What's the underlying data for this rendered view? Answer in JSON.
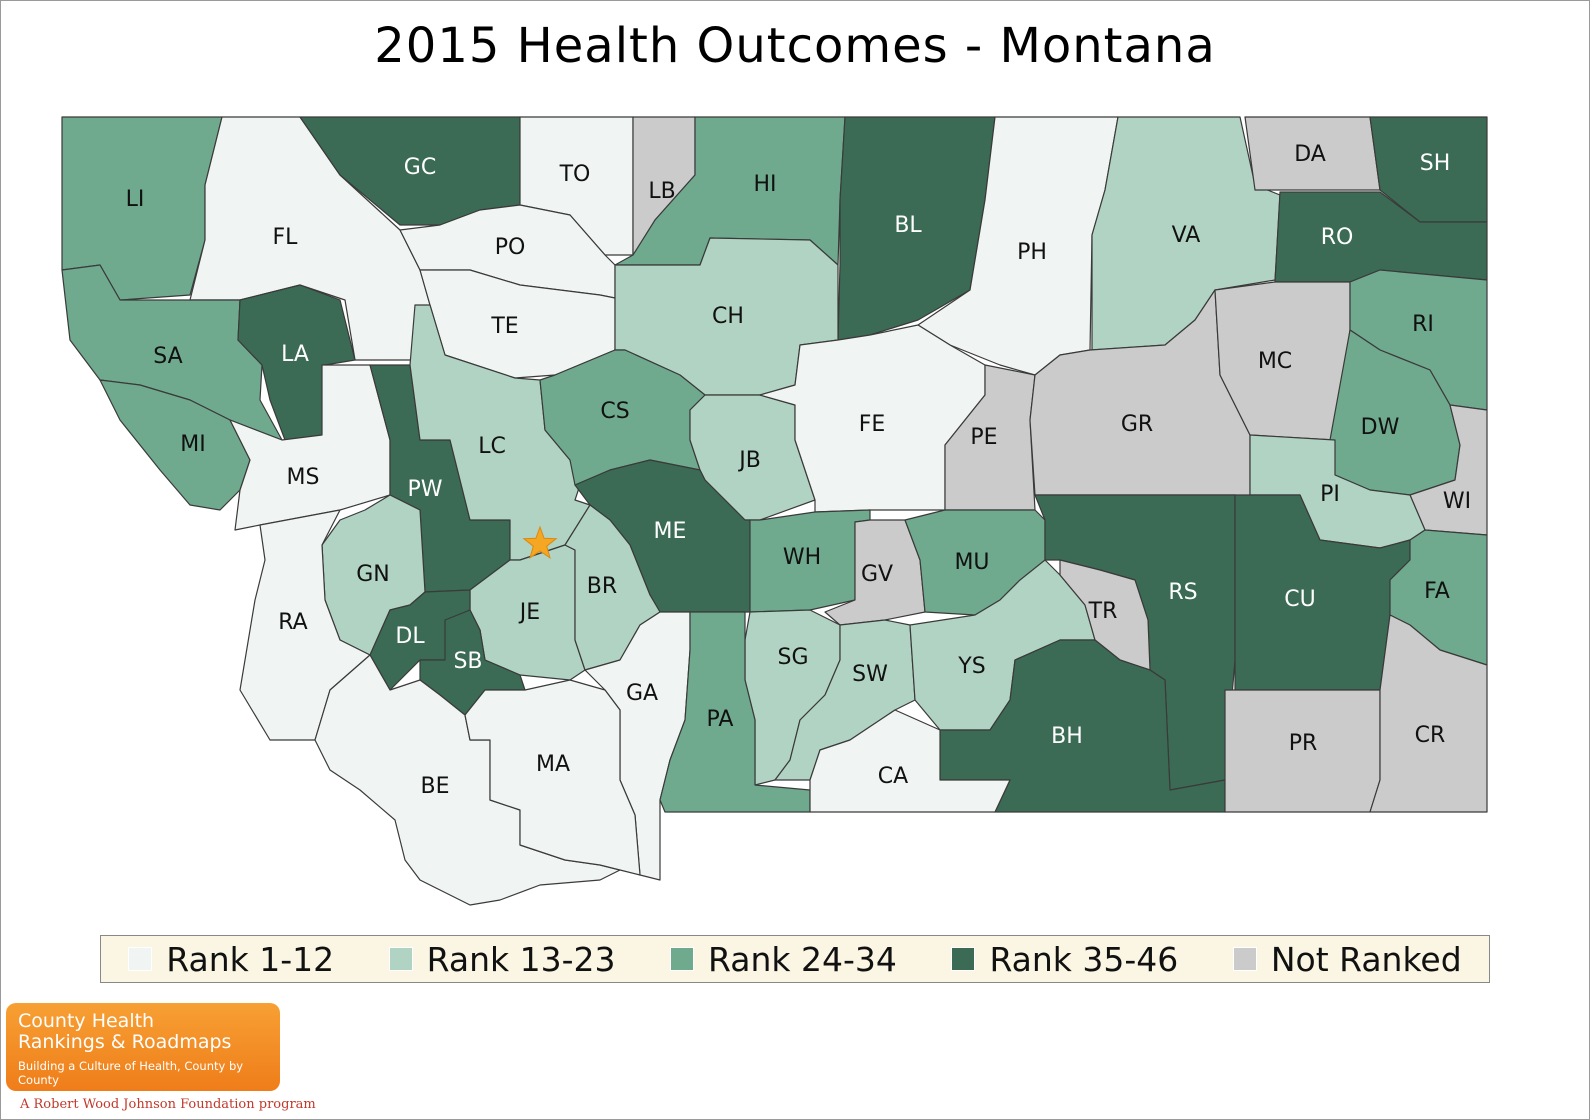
{
  "title": "2015 Health Outcomes - Montana",
  "colors": {
    "rank_1_12": "#f0f4f2",
    "rank_13_23": "#b1d3c3",
    "rank_24_34": "#6faa8e",
    "rank_35_46": "#3b6b55",
    "not_ranked": "#cbcbcb"
  },
  "legend": [
    {
      "label": "Rank 1-12",
      "color": "#f0f4f2"
    },
    {
      "label": "Rank 13-23",
      "color": "#b1d3c3"
    },
    {
      "label": "Rank 24-34",
      "color": "#6faa8e"
    },
    {
      "label": "Rank 35-46",
      "color": "#3b6b55"
    },
    {
      "label": "Not Ranked",
      "color": "#cbcbcb"
    }
  ],
  "counties": [
    {
      "abbr": "LI",
      "group": "rank_24_34"
    },
    {
      "abbr": "FL",
      "group": "rank_1_12"
    },
    {
      "abbr": "GC",
      "group": "rank_35_46"
    },
    {
      "abbr": "TO",
      "group": "rank_1_12"
    },
    {
      "abbr": "LB",
      "group": "not_ranked"
    },
    {
      "abbr": "HI",
      "group": "rank_24_34"
    },
    {
      "abbr": "BL",
      "group": "rank_35_46"
    },
    {
      "abbr": "PH",
      "group": "rank_1_12"
    },
    {
      "abbr": "VA",
      "group": "rank_13_23"
    },
    {
      "abbr": "DA",
      "group": "not_ranked"
    },
    {
      "abbr": "SH",
      "group": "rank_35_46"
    },
    {
      "abbr": "RO",
      "group": "rank_35_46"
    },
    {
      "abbr": "PO",
      "group": "rank_1_12"
    },
    {
      "abbr": "TE",
      "group": "rank_1_12"
    },
    {
      "abbr": "CH",
      "group": "rank_13_23"
    },
    {
      "abbr": "SA",
      "group": "rank_24_34"
    },
    {
      "abbr": "LA",
      "group": "rank_35_46"
    },
    {
      "abbr": "MI",
      "group": "rank_24_34"
    },
    {
      "abbr": "MS",
      "group": "rank_1_12"
    },
    {
      "abbr": "PW",
      "group": "rank_35_46"
    },
    {
      "abbr": "LC",
      "group": "rank_13_23"
    },
    {
      "abbr": "CS",
      "group": "rank_24_34"
    },
    {
      "abbr": "JB",
      "group": "rank_13_23"
    },
    {
      "abbr": "FE",
      "group": "rank_1_12"
    },
    {
      "abbr": "PE",
      "group": "not_ranked"
    },
    {
      "abbr": "GR",
      "group": "not_ranked"
    },
    {
      "abbr": "MC",
      "group": "not_ranked"
    },
    {
      "abbr": "RI",
      "group": "rank_24_34"
    },
    {
      "abbr": "DW",
      "group": "rank_24_34"
    },
    {
      "abbr": "WI",
      "group": "not_ranked"
    },
    {
      "abbr": "PI",
      "group": "rank_13_23"
    },
    {
      "abbr": "ME",
      "group": "rank_35_46"
    },
    {
      "abbr": "WH",
      "group": "rank_24_34"
    },
    {
      "abbr": "GV",
      "group": "not_ranked"
    },
    {
      "abbr": "MU",
      "group": "rank_24_34"
    },
    {
      "abbr": "RS",
      "group": "rank_35_46"
    },
    {
      "abbr": "CU",
      "group": "rank_35_46"
    },
    {
      "abbr": "FA",
      "group": "rank_24_34"
    },
    {
      "abbr": "GN",
      "group": "rank_13_23"
    },
    {
      "abbr": "RA",
      "group": "rank_1_12"
    },
    {
      "abbr": "JE",
      "group": "rank_13_23"
    },
    {
      "abbr": "BR",
      "group": "rank_13_23"
    },
    {
      "abbr": "DL",
      "group": "rank_35_46"
    },
    {
      "abbr": "SB",
      "group": "rank_35_46"
    },
    {
      "abbr": "GA",
      "group": "rank_1_12"
    },
    {
      "abbr": "SG",
      "group": "rank_13_23"
    },
    {
      "abbr": "SW",
      "group": "rank_13_23"
    },
    {
      "abbr": "YS",
      "group": "rank_13_23"
    },
    {
      "abbr": "TR",
      "group": "not_ranked"
    },
    {
      "abbr": "BH",
      "group": "rank_35_46"
    },
    {
      "abbr": "PA",
      "group": "rank_24_34"
    },
    {
      "abbr": "CA",
      "group": "rank_1_12"
    },
    {
      "abbr": "BE",
      "group": "rank_1_12"
    },
    {
      "abbr": "MA",
      "group": "rank_1_12"
    },
    {
      "abbr": "PR",
      "group": "not_ranked"
    },
    {
      "abbr": "CR",
      "group": "not_ranked"
    }
  ],
  "capital_marker": {
    "icon": "star-icon",
    "color": "#f5a623"
  },
  "logo": {
    "line1": "County Health",
    "line2": "Rankings & Roadmaps",
    "tagline": "Building a Culture of Health, County by County"
  },
  "footer": "A Robert Wood Johnson Foundation program"
}
